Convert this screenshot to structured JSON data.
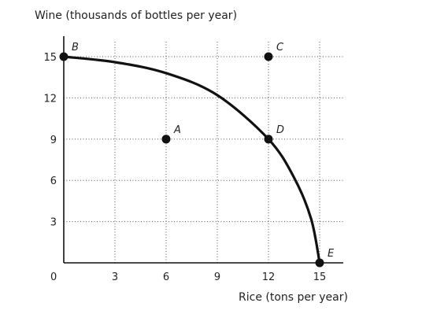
{
  "chart_data": {
    "type": "scatter",
    "ylabel": "Wine (thousands of bottles per year)",
    "xlabel": "Rice (tons per year)",
    "origin_label": "0",
    "xlim": [
      0,
      15
    ],
    "ylim": [
      0,
      15
    ],
    "x_ticks": [
      3,
      6,
      9,
      12,
      15
    ],
    "y_ticks": [
      3,
      6,
      9,
      12,
      15
    ],
    "x_tick_labels": [
      "3",
      "6",
      "9",
      "12",
      "15"
    ],
    "y_tick_labels": [
      "3",
      "6",
      "9",
      "12",
      "15"
    ],
    "grid": true,
    "frontier": {
      "name": "",
      "points": [
        {
          "x": 0,
          "y": 15
        },
        {
          "x": 3,
          "y": 14.6
        },
        {
          "x": 6,
          "y": 13.8
        },
        {
          "x": 9,
          "y": 12.2
        },
        {
          "x": 12,
          "y": 9
        },
        {
          "x": 13.5,
          "y": 6.2
        },
        {
          "x": 14.5,
          "y": 3.2
        },
        {
          "x": 15,
          "y": 0
        }
      ]
    },
    "points": [
      {
        "label": "A",
        "x": 6,
        "y": 9,
        "label_pos": "upper-right"
      },
      {
        "label": "B",
        "x": 0,
        "y": 15,
        "label_pos": "upper-right"
      },
      {
        "label": "C",
        "x": 12,
        "y": 15,
        "label_pos": "upper-right"
      },
      {
        "label": "D",
        "x": 12,
        "y": 9,
        "label_pos": "upper-right"
      },
      {
        "label": "E",
        "x": 15,
        "y": 0,
        "label_pos": "upper-right"
      }
    ]
  }
}
